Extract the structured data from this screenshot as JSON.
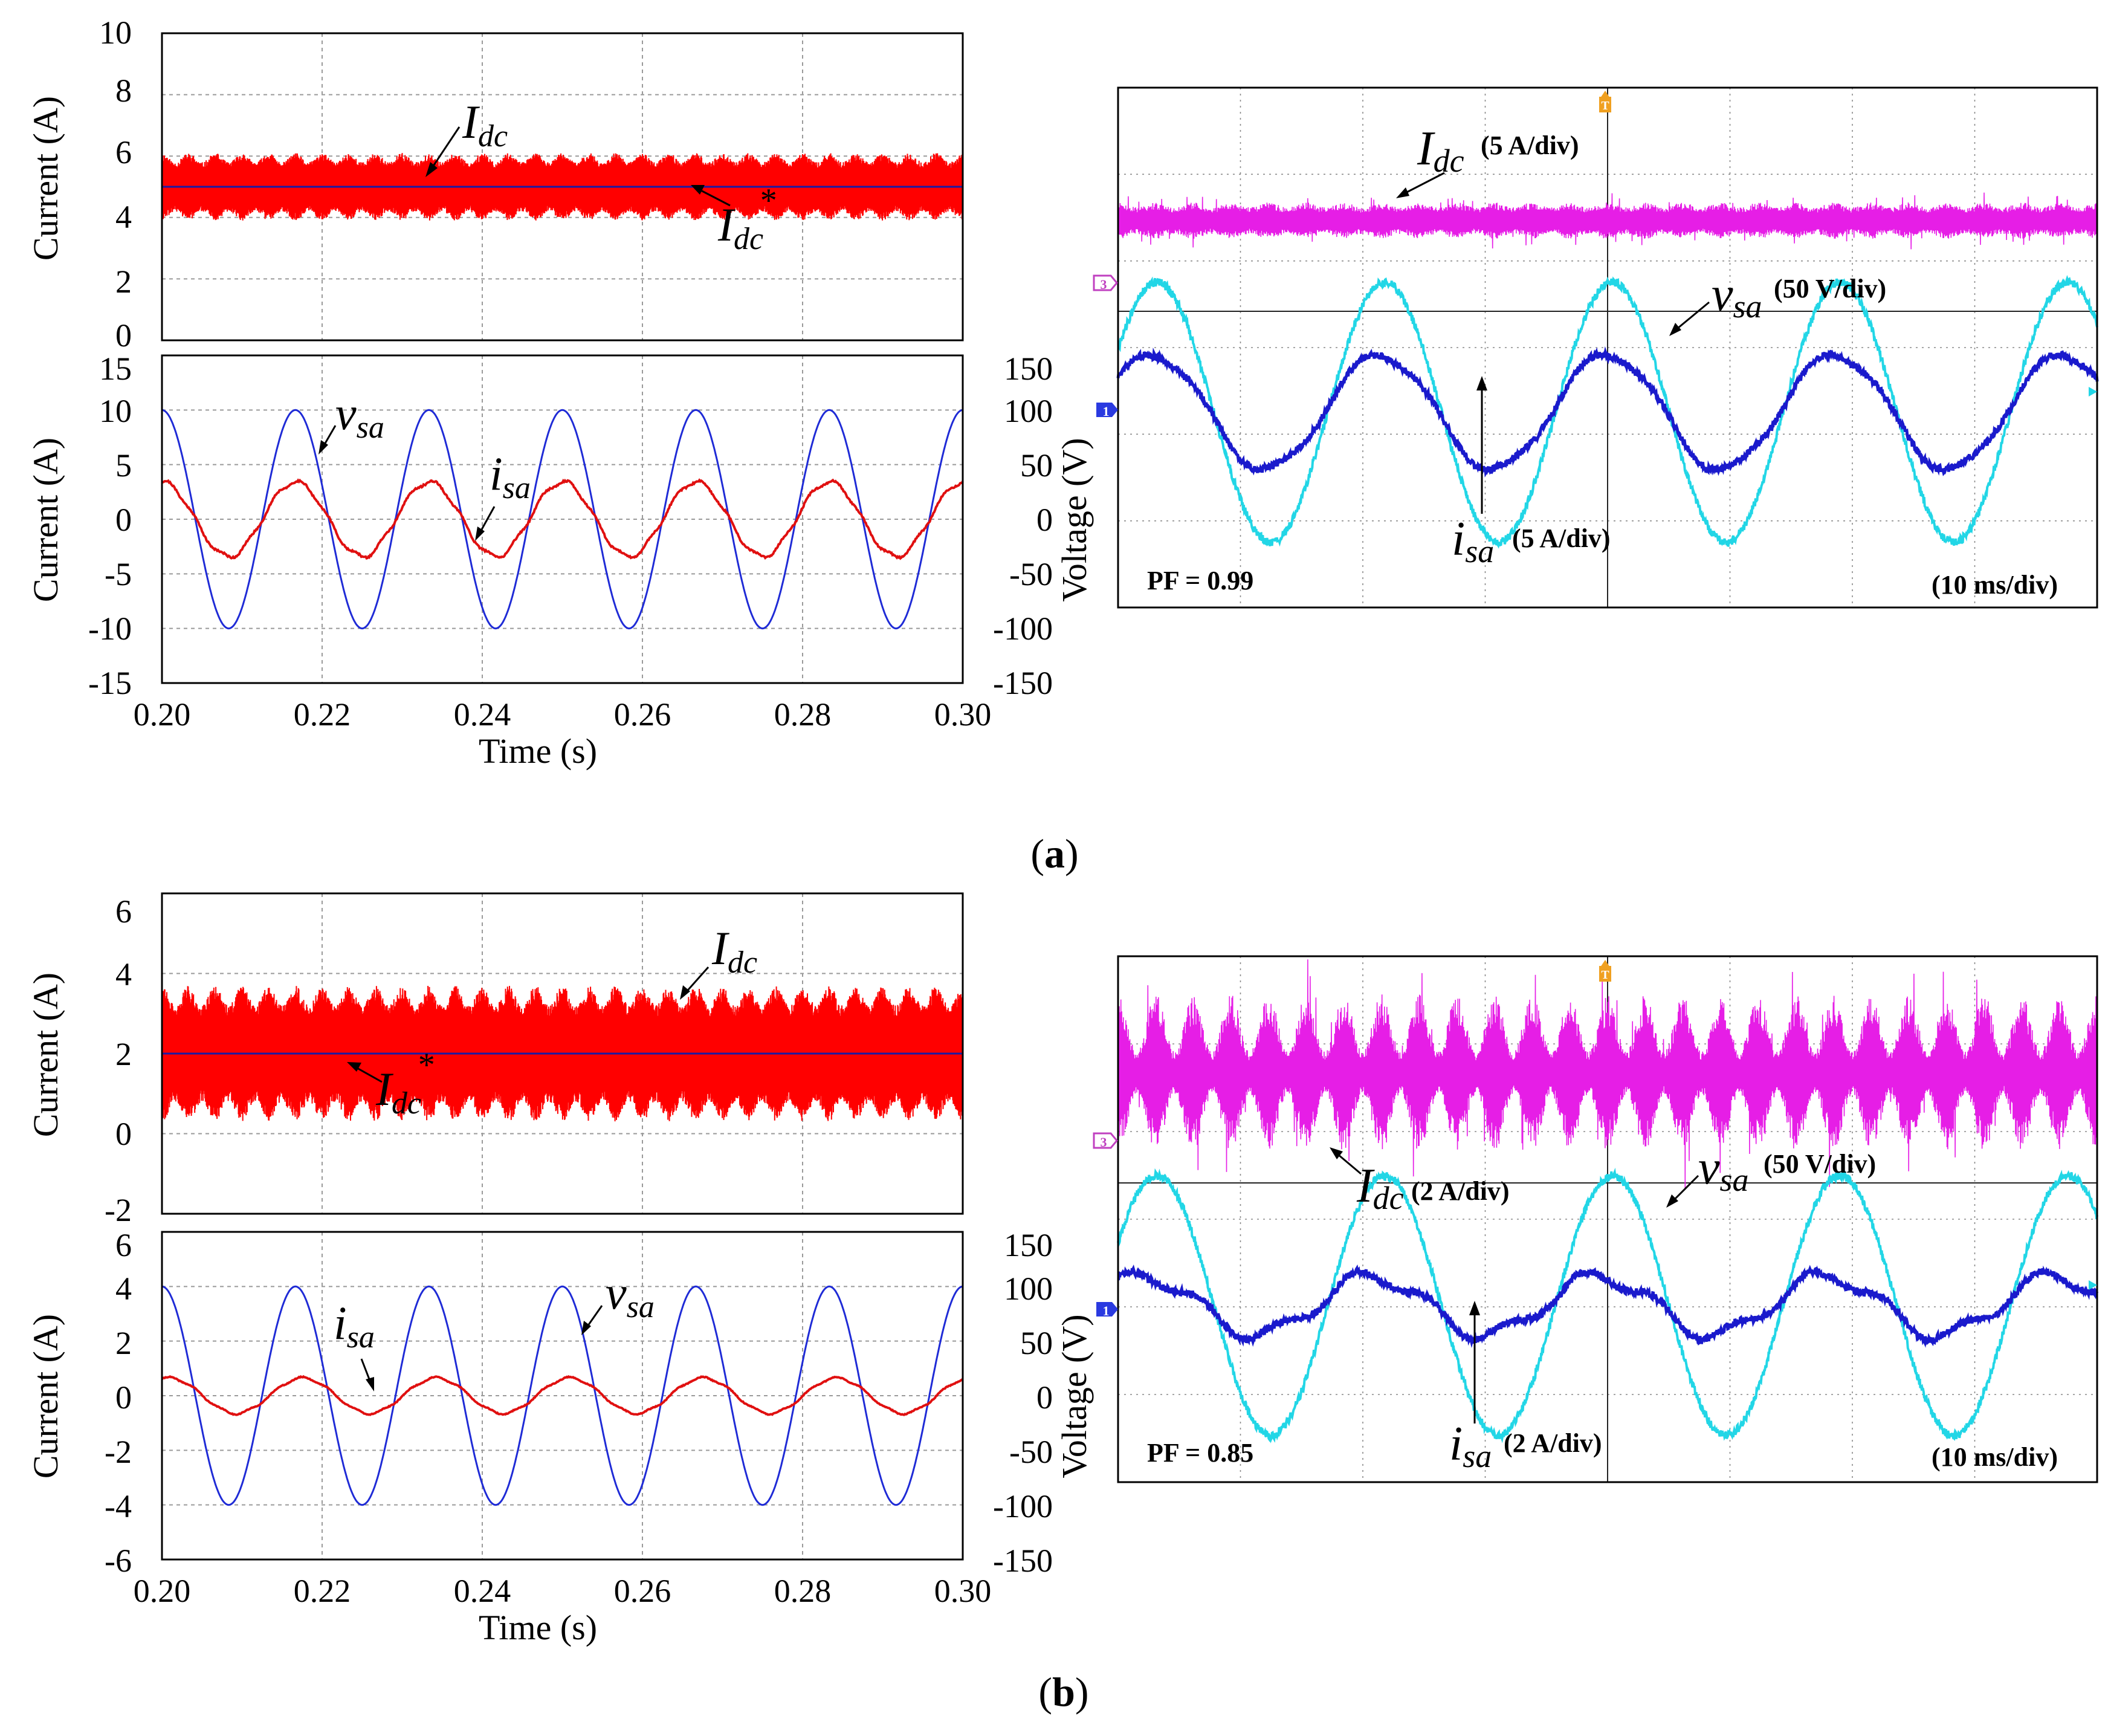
{
  "figure": {
    "panel_a_label_open": "(",
    "panel_a_label_letter": "a",
    "panel_a_label_close": ")",
    "panel_b_label_open": "(",
    "panel_b_label_letter": "b",
    "panel_b_label_close": ")"
  },
  "colors": {
    "idc_sim": "#ff0000",
    "idc_ref": "#1a1aa6",
    "vsa_sim": "#1f2bd6",
    "isa_sim": "#e01010",
    "scope_idc": "#e61ee6",
    "scope_vsa": "#22d6e6",
    "scope_isa": "#1a1acc",
    "grid": "#9a9a9a",
    "scope_grid": "#8a8a8a",
    "marker_trigger": "#f0a020",
    "marker_ch3": "#c040c0",
    "marker_ch1": "#2a3ae0"
  },
  "chart_data": [
    {
      "id": "a-top",
      "type": "line",
      "title": "",
      "ylabel": "Current (A)",
      "ylim": [
        0,
        10
      ],
      "yticks": [
        "0",
        "2",
        "4",
        "6",
        "8",
        "10"
      ],
      "xlim": [
        0.2,
        0.3
      ],
      "x_grid": [
        0.22,
        0.24,
        0.26,
        0.28
      ],
      "series": [
        {
          "name": "I_dc",
          "label_main": "I",
          "label_sub": "dc",
          "kind": "ripple",
          "mean": 5.0,
          "ripple_envelope": [
            0.8,
            1.1
          ],
          "envelope_freq_hz": 300
        },
        {
          "name": "I_dc*",
          "label_main": "I",
          "label_sub": "dc",
          "label_sup": "*",
          "kind": "constant",
          "value": 5.0
        }
      ]
    },
    {
      "id": "a-bottom",
      "type": "line",
      "ylabel": "Current (A)",
      "y2label": "Voltage (V)",
      "xlabel": "Time (s)",
      "ylim": [
        -15,
        15
      ],
      "yticks": [
        "-15",
        "-10",
        "-5",
        "0",
        "5",
        "10",
        "15"
      ],
      "y2lim": [
        -150,
        150
      ],
      "y2ticks": [
        "-150",
        "-100",
        "-50",
        "0",
        "50",
        "100",
        "150"
      ],
      "xlim": [
        0.2,
        0.3
      ],
      "xticks": [
        "0.20",
        "0.22",
        "0.24",
        "0.26",
        "0.28",
        "0.30"
      ],
      "series": [
        {
          "name": "v_sa",
          "label_main": "v",
          "label_sub": "sa",
          "axis": "y2",
          "amplitude": 100,
          "freq_hz": 60,
          "phase_deg": 90
        },
        {
          "name": "i_sa",
          "label_main": "i",
          "label_sub": "sa",
          "axis": "y",
          "amplitude": 3.4,
          "freq_hz": 60,
          "phase_deg": 90
        }
      ]
    },
    {
      "id": "a-scope",
      "type": "line",
      "pf_label": "PF = 0.99",
      "time_div_label": "(10 ms/div)",
      "series": [
        {
          "name": "I_dc",
          "label_main": "I",
          "label_sub": "dc",
          "scale_label": "(5 A/div)"
        },
        {
          "name": "v_sa",
          "label_main": "v",
          "label_sub": "sa",
          "scale_label": "(50 V/div)"
        },
        {
          "name": "i_sa",
          "label_main": "i",
          "label_sub": "sa",
          "scale_label": "(5 A/div)"
        }
      ],
      "channel_markers": [
        "T",
        "3",
        "1"
      ]
    },
    {
      "id": "b-top",
      "type": "line",
      "ylabel": "Current (A)",
      "ylim": [
        -2,
        6
      ],
      "yticks": [
        "-2",
        "0",
        "2",
        "4",
        "6"
      ],
      "xlim": [
        0.2,
        0.3
      ],
      "x_grid": [
        0.22,
        0.24,
        0.26,
        0.28
      ],
      "series": [
        {
          "name": "I_dc",
          "label_main": "I",
          "label_sub": "dc",
          "kind": "ripple",
          "mean": 2.0,
          "ripple_envelope": [
            1.2,
            1.7
          ],
          "envelope_freq_hz": 300
        },
        {
          "name": "I_dc*",
          "label_main": "I",
          "label_sub": "dc",
          "label_sup": "*",
          "kind": "constant",
          "value": 2.0
        }
      ]
    },
    {
      "id": "b-bottom",
      "type": "line",
      "ylabel": "Current (A)",
      "y2label": "Voltage (V)",
      "xlabel": "Time (s)",
      "ylim": [
        -6,
        6
      ],
      "yticks": [
        "-6",
        "-4",
        "-2",
        "0",
        "2",
        "4",
        "6"
      ],
      "y2lim": [
        -150,
        150
      ],
      "y2ticks": [
        "-150",
        "-100",
        "-50",
        "0",
        "50",
        "100",
        "150"
      ],
      "xlim": [
        0.2,
        0.3
      ],
      "xticks": [
        "0.20",
        "0.22",
        "0.24",
        "0.26",
        "0.28",
        "0.30"
      ],
      "series": [
        {
          "name": "v_sa",
          "label_main": "v",
          "label_sub": "sa",
          "axis": "y2",
          "amplitude": 100,
          "freq_hz": 60,
          "phase_deg": 90
        },
        {
          "name": "i_sa",
          "label_main": "i",
          "label_sub": "sa",
          "axis": "y",
          "amplitude": 0.65,
          "freq_hz": 60,
          "phase_deg": 70
        }
      ]
    },
    {
      "id": "b-scope",
      "type": "line",
      "pf_label": "PF = 0.85",
      "time_div_label": "(10 ms/div)",
      "series": [
        {
          "name": "I_dc",
          "label_main": "I",
          "label_sub": "dc",
          "scale_label": "(2 A/div)"
        },
        {
          "name": "v_sa",
          "label_main": "v",
          "label_sub": "sa",
          "scale_label": "(50 V/div)"
        },
        {
          "name": "i_sa",
          "label_main": "i",
          "label_sub": "sa",
          "scale_label": "(2 A/div)"
        }
      ],
      "channel_markers": [
        "T",
        "3",
        "1"
      ]
    }
  ]
}
